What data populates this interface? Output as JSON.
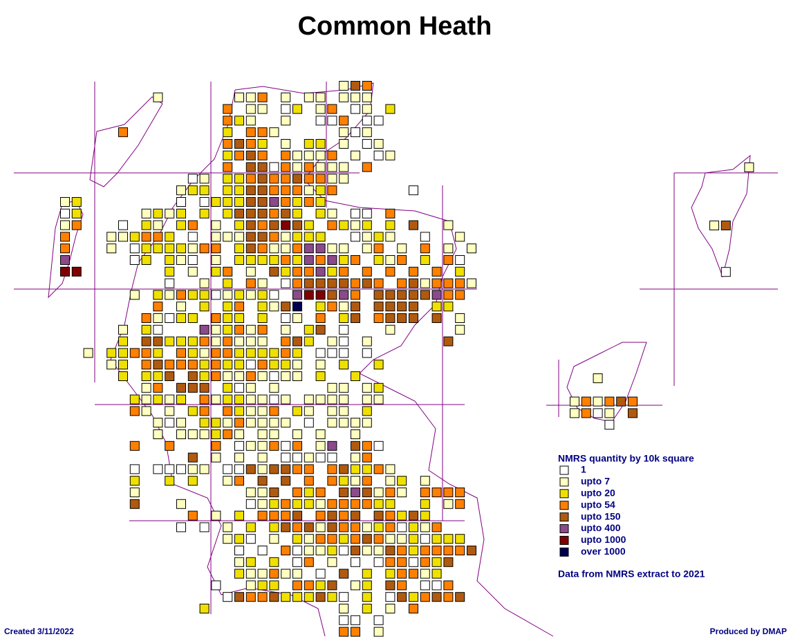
{
  "title": "Common Heath",
  "legend": {
    "title": "NMRS quantity by 10k square",
    "classes": [
      {
        "label": "1",
        "color": "#ffffff"
      },
      {
        "label": "upto 7",
        "color": "#ffffc0"
      },
      {
        "label": "upto 20",
        "color": "#f0e000"
      },
      {
        "label": "upto 54",
        "color": "#ff8000"
      },
      {
        "label": "upto 150",
        "color": "#b05a10"
      },
      {
        "label": "upto 400",
        "color": "#8b4a8a"
      },
      {
        "label": "upto 1000",
        "color": "#800000"
      },
      {
        "label": "over 1000",
        "color": "#000050"
      }
    ]
  },
  "note": "Data from NMRS extract to 2021",
  "created": "Created 3/11/2022",
  "produced": "Produced by DMAP",
  "map": {
    "rows": [
      "........................143.........",
      "........1......113.1.11.111.........",
      "..............3.11.02.13.01.2.......",
      "..............321..1..003.00........",
      ".....3........2.331.....101.........",
      "..............3432.1.22.1.01........",
      "..............2343.31113.1.01.......",
      "..............3.440313111.3.........",
      "...........01.22343343311...........",
      "..........122.2244333123......0.....",
      "12........0.02224453232.............",
      "02.....1212.2.2444342.21.00.3.......",
      "13...0.21.23.1.2434642.3212.2.4..1..",
      "3...112332.0.1114431222..0121..0..1.",
      "3...1.02222133.2431135511.13.1.3.1.1",
      "5.....02.210.1.22223253523.213.2.30.",
      "66.......2.1.23.1.4233523.3.3.3.3.2.",
      ".........0..1.2.31.034444343.3413331",
      "......1.21322012120.566453.44444533.",
      "........3.1.2.23.2147.2314.4444.22..",
      ".......31022.322.2.01.3.24.3444.4.1.",
      ".....1.20...512313.1.24.0...1.....1.",
      ".....2.44222313111.342.10.1......4..",
      "..1.22332.32133222232.000.0.........",
      "....12.34333232203221.1.2..2........",
      ".....2.224.4231131011.2..2..........",
      ".......13.444.201.1....11.12........",
      "......21212.31221101.1111.11........",
      "......31.1.23.32113.21.11.2.........",
      "........101.22131111.0.1111.........",
      "........1.111231.11.1.1..1..........",
      "......3..3...3.011303.15.430........",
      "...........4.1.1.1.00100.13.........",
      "......0.00011.00414433.342231.......",
      "......2..2.2..13.4.4.3.3213.12.1....",
      "......1.........114.323.454131.3333.",
      "......4...1.....0123221333322..2.13.",
      "...........3.1.2.3334.3434.43242....",
      "..........0.0.1.2.243414331230213...",
      "..............120.1.213323431120222.",
      "...............0.0.30112041143233334",
      "...............12.2.03.1.0.0330324..",
      "...............211311.0.4.2.23312...",
      ".............0..122.3324.12.43.003..",
      "..............04334222420.2.0423434.",
      "............2...........1.2.1.3.....",
      "........................00.0........",
      "........................33.1........"
    ],
    "orkney": [
      "..1...",
      "......",
      "131343",
      "1301.4",
      "...0.."
    ],
    "shetland": [
      "...1",
      "....",
      "....",
      "....",
      "....",
      "14..",
      "....",
      "....",
      "....",
      ".0.."
    ]
  }
}
